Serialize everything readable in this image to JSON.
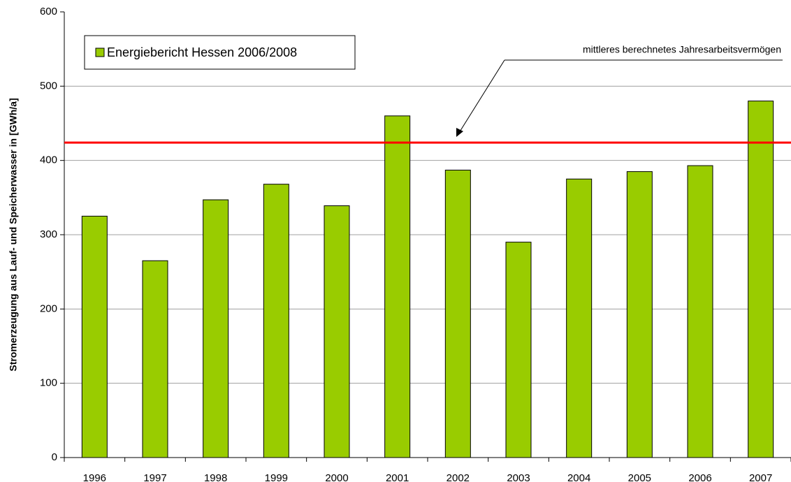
{
  "chart_data": {
    "type": "bar",
    "y_label": "Stromerzeugung aus Lauf- und Speicherwasser in [GWh/a]",
    "categories": [
      "1996",
      "1997",
      "1998",
      "1999",
      "2000",
      "2001",
      "2002",
      "2003",
      "2004",
      "2005",
      "2006",
      "2007"
    ],
    "series": [
      {
        "name": "Energiebericht Hessen 2006/2008",
        "color": "#99cc00",
        "values": [
          325,
          265,
          347,
          368,
          339,
          460,
          387,
          290,
          375,
          385,
          393,
          480
        ]
      }
    ],
    "reference_line": {
      "value": 424,
      "color": "#ff0000",
      "label": "mittleres berechnetes Jahresarbeitsvermögen"
    },
    "ylim": [
      0,
      600
    ],
    "yticks": [
      0,
      100,
      200,
      300,
      400,
      500,
      600
    ],
    "grid": true,
    "legend": "top-left"
  }
}
